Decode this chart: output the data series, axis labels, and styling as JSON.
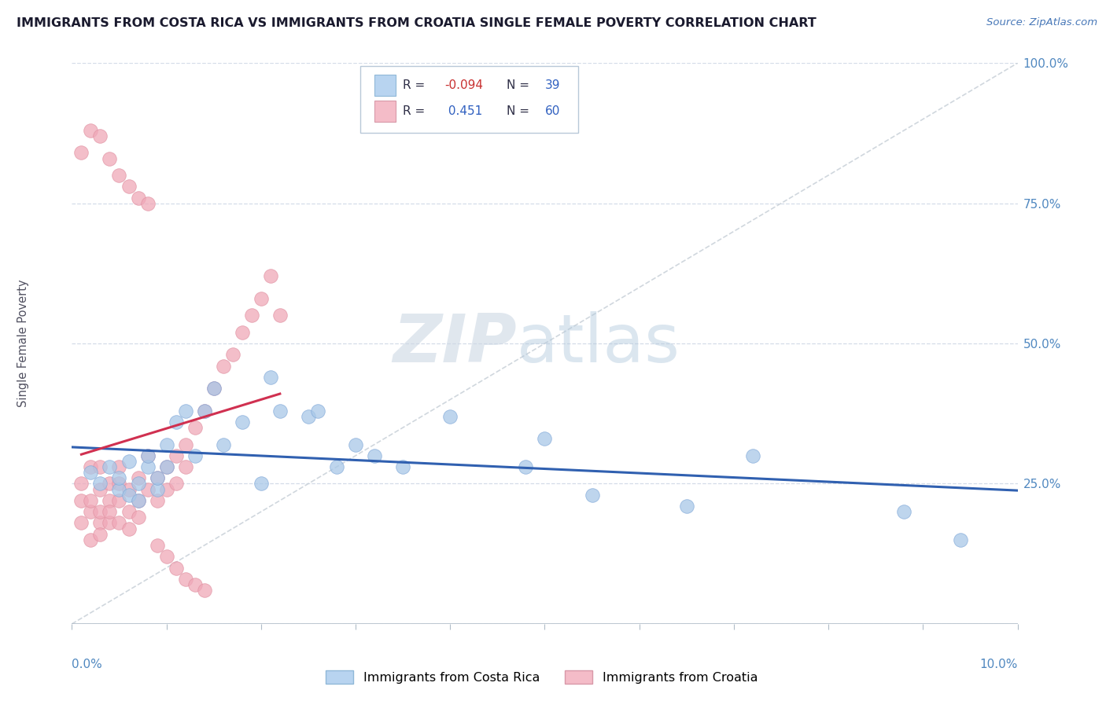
{
  "title": "IMMIGRANTS FROM COSTA RICA VS IMMIGRANTS FROM CROATIA SINGLE FEMALE POVERTY CORRELATION CHART",
  "source": "Source: ZipAtlas.com",
  "ylabel": "Single Female Poverty",
  "xmin": 0.0,
  "xmax": 0.1,
  "ymin": 0.0,
  "ymax": 1.0,
  "yticks": [
    0.0,
    0.25,
    0.5,
    0.75,
    1.0
  ],
  "ytick_labels": [
    "",
    "25.0%",
    "50.0%",
    "75.0%",
    "100.0%"
  ],
  "costa_rica_R": -0.094,
  "costa_rica_N": 39,
  "croatia_R": 0.451,
  "croatia_N": 60,
  "costa_rica_color": "#a8c8e8",
  "croatia_color": "#f0a8b8",
  "costa_rica_line_color": "#3060b0",
  "croatia_line_color": "#d03050",
  "legend_box_costa_rica": "#b8d4f0",
  "legend_box_croatia": "#f4bcc8",
  "background_color": "#ffffff",
  "grid_color": "#d4dce8",
  "costa_rica_x": [
    0.002,
    0.003,
    0.004,
    0.005,
    0.005,
    0.006,
    0.006,
    0.007,
    0.007,
    0.008,
    0.008,
    0.009,
    0.009,
    0.01,
    0.01,
    0.011,
    0.012,
    0.013,
    0.014,
    0.015,
    0.016,
    0.018,
    0.02,
    0.021,
    0.022,
    0.025,
    0.026,
    0.028,
    0.03,
    0.032,
    0.035,
    0.04,
    0.048,
    0.05,
    0.055,
    0.065,
    0.072,
    0.088,
    0.094
  ],
  "costa_rica_y": [
    0.27,
    0.25,
    0.28,
    0.24,
    0.26,
    0.23,
    0.29,
    0.25,
    0.22,
    0.28,
    0.3,
    0.24,
    0.26,
    0.32,
    0.28,
    0.36,
    0.38,
    0.3,
    0.38,
    0.42,
    0.32,
    0.36,
    0.25,
    0.44,
    0.38,
    0.37,
    0.38,
    0.28,
    0.32,
    0.3,
    0.28,
    0.37,
    0.28,
    0.33,
    0.23,
    0.21,
    0.3,
    0.2,
    0.15
  ],
  "croatia_x": [
    0.001,
    0.001,
    0.001,
    0.002,
    0.002,
    0.002,
    0.002,
    0.003,
    0.003,
    0.003,
    0.003,
    0.003,
    0.004,
    0.004,
    0.004,
    0.004,
    0.005,
    0.005,
    0.005,
    0.005,
    0.006,
    0.006,
    0.006,
    0.007,
    0.007,
    0.007,
    0.008,
    0.008,
    0.009,
    0.009,
    0.01,
    0.01,
    0.011,
    0.011,
    0.012,
    0.012,
    0.013,
    0.014,
    0.015,
    0.016,
    0.017,
    0.018,
    0.019,
    0.02,
    0.021,
    0.022,
    0.001,
    0.002,
    0.003,
    0.004,
    0.005,
    0.006,
    0.007,
    0.008,
    0.009,
    0.01,
    0.011,
    0.012,
    0.013,
    0.014
  ],
  "croatia_y": [
    0.22,
    0.18,
    0.25,
    0.2,
    0.15,
    0.28,
    0.22,
    0.18,
    0.24,
    0.2,
    0.28,
    0.16,
    0.22,
    0.18,
    0.25,
    0.2,
    0.22,
    0.18,
    0.25,
    0.28,
    0.2,
    0.17,
    0.24,
    0.22,
    0.26,
    0.19,
    0.24,
    0.3,
    0.26,
    0.22,
    0.28,
    0.24,
    0.3,
    0.25,
    0.32,
    0.28,
    0.35,
    0.38,
    0.42,
    0.46,
    0.48,
    0.52,
    0.55,
    0.58,
    0.62,
    0.55,
    0.84,
    0.88,
    0.87,
    0.83,
    0.8,
    0.78,
    0.76,
    0.75,
    0.14,
    0.12,
    0.1,
    0.08,
    0.07,
    0.06
  ]
}
